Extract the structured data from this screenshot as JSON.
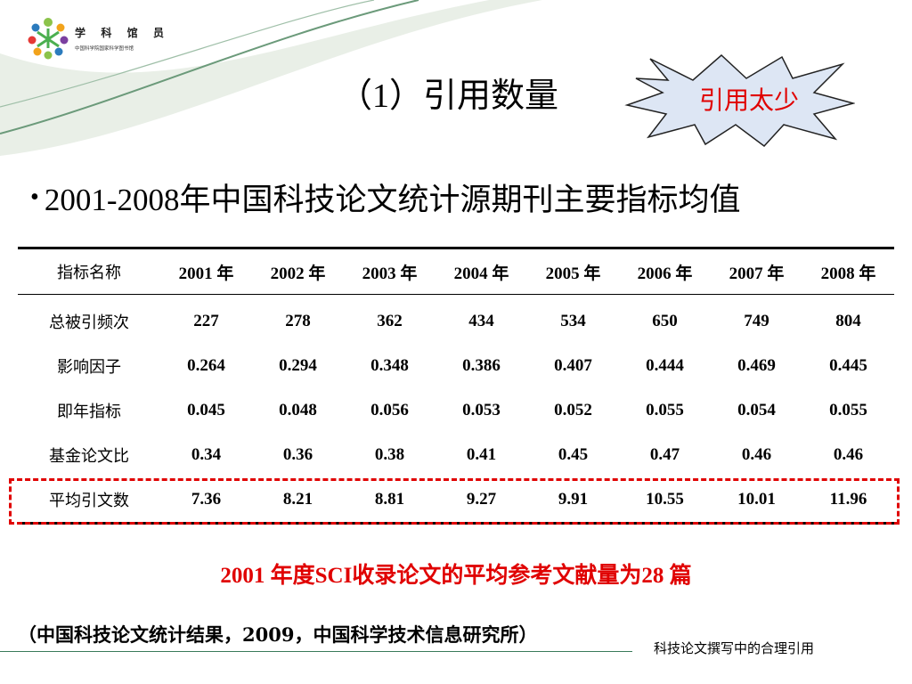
{
  "logo": {
    "title": "学 科 馆 员",
    "subtitle": "中国科学院国家科学图书馆"
  },
  "slide": {
    "title": "（1）引用数量",
    "callout": "引用太少"
  },
  "bullet": "2001-2008年中国科技论文统计源期刊主要指标均值",
  "table": {
    "headers": [
      "指标名称",
      "2001 年",
      "2002 年",
      "2003 年",
      "2004 年",
      "2005 年",
      "2006 年",
      "2007 年",
      "2008 年"
    ],
    "rows": [
      {
        "name": "总被引频次",
        "values": [
          "227",
          "278",
          "362",
          "434",
          "534",
          "650",
          "749",
          "804"
        ]
      },
      {
        "name": "影响因子",
        "values": [
          "0.264",
          "0.294",
          "0.348",
          "0.386",
          "0.407",
          "0.444",
          "0.469",
          "0.445"
        ]
      },
      {
        "name": "即年指标",
        "values": [
          "0.045",
          "0.048",
          "0.056",
          "0.053",
          "0.052",
          "0.055",
          "0.054",
          "0.055"
        ]
      },
      {
        "name": "基金论文比",
        "values": [
          "0.34",
          "0.36",
          "0.38",
          "0.41",
          "0.45",
          "0.47",
          "0.46",
          "0.46"
        ]
      },
      {
        "name": "平均引文数",
        "values": [
          "7.36",
          "8.21",
          "8.81",
          "9.27",
          "9.91",
          "10.55",
          "10.01",
          "11.96"
        ]
      }
    ]
  },
  "note": "2001 年度SCI收录论文的平均参考文献量为28 篇",
  "source": "（中国科技论文统计结果，2009，中国科学技术信息研究所）",
  "footer": "科技论文撰写中的合理引用",
  "colors": {
    "accent_red": "#e00000",
    "swoosh_green": "#6b9a7a",
    "burst_fill": "#dde6f4"
  }
}
